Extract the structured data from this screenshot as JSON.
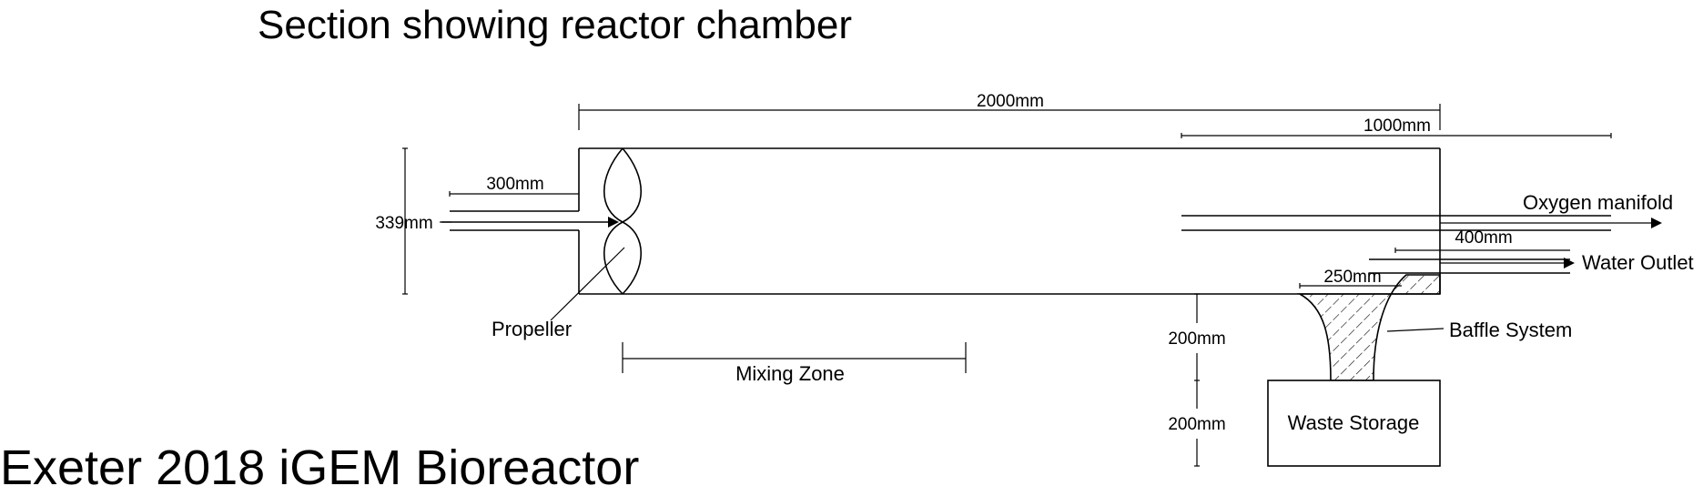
{
  "section_title": "Section showing reactor chamber",
  "footer_title": "Exeter 2018 iGEM Bioreactor",
  "dimensions": {
    "length_total": "2000mm",
    "length_half": "1000mm",
    "inlet_length": "300mm",
    "height": "339mm",
    "oxygen_length": "400mm",
    "baffle_width": "250mm",
    "baffle_height": "200mm",
    "storage_height": "200mm"
  },
  "labels": {
    "propeller": "Propeller",
    "mixing_zone": "Mixing Zone",
    "oxygen_manifold": "Oxygen manifold",
    "water_outlet": "Water Outlet",
    "baffle_system": "Baffle System",
    "waste_storage": "Waste Storage"
  }
}
